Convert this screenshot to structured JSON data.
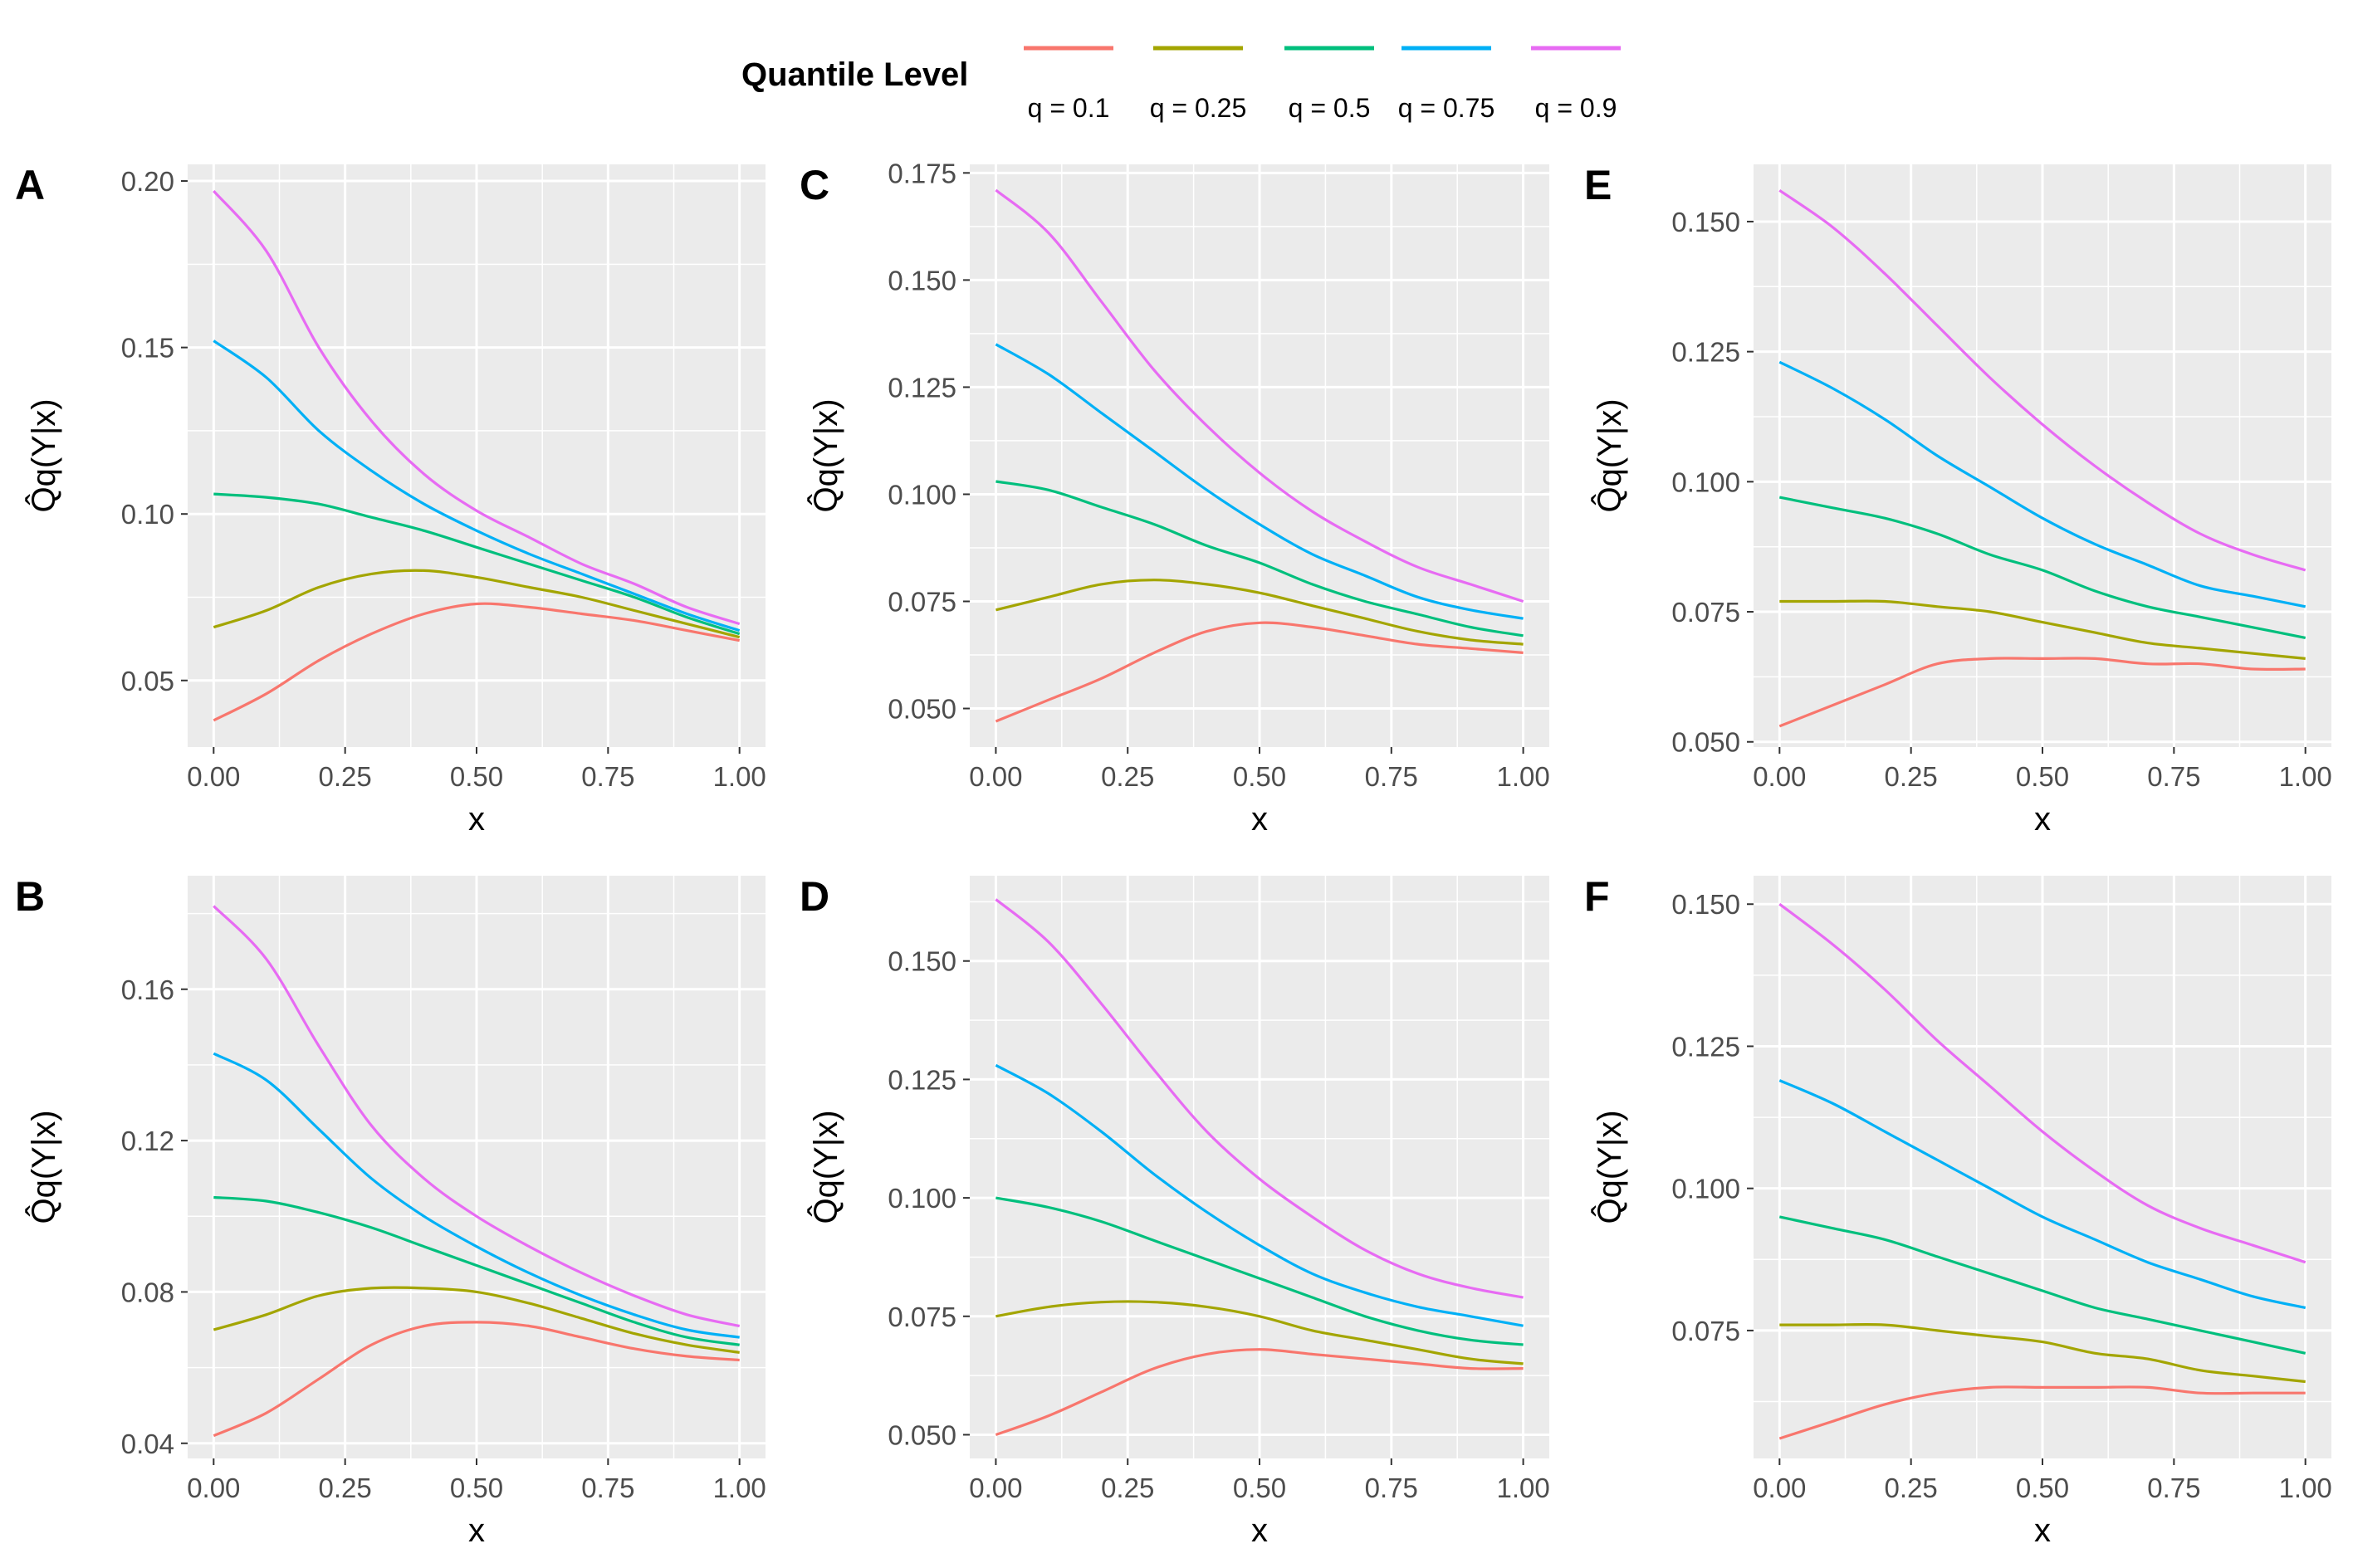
{
  "legend": {
    "title": "Quantile Level",
    "items": [
      {
        "label": "q = 0.1",
        "color": "#F8766D"
      },
      {
        "label": "q = 0.25",
        "color": "#A3A500"
      },
      {
        "label": "q = 0.5",
        "color": "#00BF7D"
      },
      {
        "label": "q = 0.75",
        "color": "#00B0F6"
      },
      {
        "label": "q = 0.9",
        "color": "#E76BF3"
      }
    ]
  },
  "chart_data": [
    {
      "type": "line",
      "panel": "A",
      "xlabel": "x",
      "ylabel": "Q̂q(Y|x)",
      "xlim": [
        0,
        1
      ],
      "ylim": [
        0.03,
        0.205
      ],
      "xticks": [
        "0.00",
        "0.25",
        "0.50",
        "0.75",
        "1.00"
      ],
      "yticks": [
        "0.05",
        "0.10",
        "0.15",
        "0.20"
      ],
      "x": [
        0,
        0.1,
        0.2,
        0.3,
        0.4,
        0.5,
        0.6,
        0.7,
        0.8,
        0.9,
        1.0
      ],
      "series": [
        {
          "name": "q = 0.1",
          "values": [
            0.038,
            0.046,
            0.056,
            0.064,
            0.07,
            0.073,
            0.072,
            0.07,
            0.068,
            0.065,
            0.062
          ]
        },
        {
          "name": "q = 0.25",
          "values": [
            0.066,
            0.071,
            0.078,
            0.082,
            0.083,
            0.081,
            0.078,
            0.075,
            0.071,
            0.067,
            0.063
          ]
        },
        {
          "name": "q = 0.5",
          "values": [
            0.106,
            0.105,
            0.103,
            0.099,
            0.095,
            0.09,
            0.085,
            0.08,
            0.075,
            0.069,
            0.064
          ]
        },
        {
          "name": "q = 0.75",
          "values": [
            0.152,
            0.141,
            0.125,
            0.113,
            0.103,
            0.095,
            0.088,
            0.082,
            0.076,
            0.07,
            0.065
          ]
        },
        {
          "name": "q = 0.9",
          "values": [
            0.197,
            0.179,
            0.15,
            0.128,
            0.112,
            0.101,
            0.093,
            0.085,
            0.079,
            0.072,
            0.067
          ]
        }
      ]
    },
    {
      "type": "line",
      "panel": "B",
      "xlabel": "x",
      "ylabel": "Q̂q(Y|x)",
      "xlim": [
        0,
        1
      ],
      "ylim": [
        0.036,
        0.19
      ],
      "xticks": [
        "0.00",
        "0.25",
        "0.50",
        "0.75",
        "1.00"
      ],
      "yticks": [
        "0.04",
        "0.08",
        "0.12",
        "0.16"
      ],
      "x": [
        0,
        0.1,
        0.2,
        0.3,
        0.4,
        0.5,
        0.6,
        0.7,
        0.8,
        0.9,
        1.0
      ],
      "series": [
        {
          "name": "q = 0.1",
          "values": [
            0.042,
            0.048,
            0.057,
            0.066,
            0.071,
            0.072,
            0.071,
            0.068,
            0.065,
            0.063,
            0.062
          ]
        },
        {
          "name": "q = 0.25",
          "values": [
            0.07,
            0.074,
            0.079,
            0.081,
            0.081,
            0.08,
            0.077,
            0.073,
            0.069,
            0.066,
            0.064
          ]
        },
        {
          "name": "q = 0.5",
          "values": [
            0.105,
            0.104,
            0.101,
            0.097,
            0.092,
            0.087,
            0.082,
            0.077,
            0.072,
            0.068,
            0.066
          ]
        },
        {
          "name": "q = 0.75",
          "values": [
            0.143,
            0.136,
            0.123,
            0.11,
            0.1,
            0.092,
            0.085,
            0.079,
            0.074,
            0.07,
            0.068
          ]
        },
        {
          "name": "q = 0.9",
          "values": [
            0.182,
            0.168,
            0.145,
            0.124,
            0.11,
            0.1,
            0.092,
            0.085,
            0.079,
            0.074,
            0.071
          ]
        }
      ]
    },
    {
      "type": "line",
      "panel": "C",
      "xlabel": "x",
      "ylabel": "Q̂q(Y|x)",
      "xlim": [
        0,
        1
      ],
      "ylim": [
        0.041,
        0.177
      ],
      "xticks": [
        "0.00",
        "0.25",
        "0.50",
        "0.75",
        "1.00"
      ],
      "yticks": [
        "0.050",
        "0.075",
        "0.100",
        "0.125",
        "0.150",
        "0.175"
      ],
      "x": [
        0,
        0.1,
        0.2,
        0.3,
        0.4,
        0.5,
        0.6,
        0.7,
        0.8,
        0.9,
        1.0
      ],
      "series": [
        {
          "name": "q = 0.1",
          "values": [
            0.047,
            0.052,
            0.057,
            0.063,
            0.068,
            0.07,
            0.069,
            0.067,
            0.065,
            0.064,
            0.063
          ]
        },
        {
          "name": "q = 0.25",
          "values": [
            0.073,
            0.076,
            0.079,
            0.08,
            0.079,
            0.077,
            0.074,
            0.071,
            0.068,
            0.066,
            0.065
          ]
        },
        {
          "name": "q = 0.5",
          "values": [
            0.103,
            0.101,
            0.097,
            0.093,
            0.088,
            0.084,
            0.079,
            0.075,
            0.072,
            0.069,
            0.067
          ]
        },
        {
          "name": "q = 0.75",
          "values": [
            0.135,
            0.128,
            0.119,
            0.11,
            0.101,
            0.093,
            0.086,
            0.081,
            0.076,
            0.073,
            0.071
          ]
        },
        {
          "name": "q = 0.9",
          "values": [
            0.171,
            0.161,
            0.145,
            0.129,
            0.116,
            0.105,
            0.096,
            0.089,
            0.083,
            0.079,
            0.075
          ]
        }
      ]
    },
    {
      "type": "line",
      "panel": "D",
      "xlabel": "x",
      "ylabel": "Q̂q(Y|x)",
      "xlim": [
        0,
        1
      ],
      "ylim": [
        0.045,
        0.168
      ],
      "xticks": [
        "0.00",
        "0.25",
        "0.50",
        "0.75",
        "1.00"
      ],
      "yticks": [
        "0.050",
        "0.075",
        "0.100",
        "0.125",
        "0.150"
      ],
      "x": [
        0,
        0.1,
        0.2,
        0.3,
        0.4,
        0.5,
        0.6,
        0.7,
        0.8,
        0.9,
        1.0
      ],
      "series": [
        {
          "name": "q = 0.1",
          "values": [
            0.05,
            0.054,
            0.059,
            0.064,
            0.067,
            0.068,
            0.067,
            0.066,
            0.065,
            0.064,
            0.064
          ]
        },
        {
          "name": "q = 0.25",
          "values": [
            0.075,
            0.077,
            0.078,
            0.078,
            0.077,
            0.075,
            0.072,
            0.07,
            0.068,
            0.066,
            0.065
          ]
        },
        {
          "name": "q = 0.5",
          "values": [
            0.1,
            0.098,
            0.095,
            0.091,
            0.087,
            0.083,
            0.079,
            0.075,
            0.072,
            0.07,
            0.069
          ]
        },
        {
          "name": "q = 0.75",
          "values": [
            0.128,
            0.122,
            0.114,
            0.105,
            0.097,
            0.09,
            0.084,
            0.08,
            0.077,
            0.075,
            0.073
          ]
        },
        {
          "name": "q = 0.9",
          "values": [
            0.163,
            0.154,
            0.141,
            0.127,
            0.114,
            0.104,
            0.096,
            0.089,
            0.084,
            0.081,
            0.079
          ]
        }
      ]
    },
    {
      "type": "line",
      "panel": "E",
      "xlabel": "x",
      "ylabel": "Q̂q(Y|x)",
      "xlim": [
        0,
        1
      ],
      "ylim": [
        0.049,
        0.161
      ],
      "xticks": [
        "0.00",
        "0.25",
        "0.50",
        "0.75",
        "1.00"
      ],
      "yticks": [
        "0.050",
        "0.075",
        "0.100",
        "0.125",
        "0.150"
      ],
      "x": [
        0,
        0.1,
        0.2,
        0.3,
        0.4,
        0.5,
        0.6,
        0.7,
        0.8,
        0.9,
        1.0
      ],
      "series": [
        {
          "name": "q = 0.1",
          "values": [
            0.053,
            0.057,
            0.061,
            0.065,
            0.066,
            0.066,
            0.066,
            0.065,
            0.065,
            0.064,
            0.064
          ]
        },
        {
          "name": "q = 0.25",
          "values": [
            0.077,
            0.077,
            0.077,
            0.076,
            0.075,
            0.073,
            0.071,
            0.069,
            0.068,
            0.067,
            0.066
          ]
        },
        {
          "name": "q = 0.5",
          "values": [
            0.097,
            0.095,
            0.093,
            0.09,
            0.086,
            0.083,
            0.079,
            0.076,
            0.074,
            0.072,
            0.07
          ]
        },
        {
          "name": "q = 0.75",
          "values": [
            0.123,
            0.118,
            0.112,
            0.105,
            0.099,
            0.093,
            0.088,
            0.084,
            0.08,
            0.078,
            0.076
          ]
        },
        {
          "name": "q = 0.9",
          "values": [
            0.156,
            0.149,
            0.14,
            0.13,
            0.12,
            0.111,
            0.103,
            0.096,
            0.09,
            0.086,
            0.083
          ]
        }
      ]
    },
    {
      "type": "line",
      "panel": "F",
      "xlabel": "x",
      "ylabel": "Q̂q(Y|x)",
      "xlim": [
        0,
        1
      ],
      "ylim": [
        0.0525,
        0.155
      ],
      "xticks": [
        "0.00",
        "0.25",
        "0.50",
        "0.75",
        "1.00"
      ],
      "yticks": [
        "0.075",
        "0.100",
        "0.125",
        "0.150"
      ],
      "x": [
        0,
        0.1,
        0.2,
        0.3,
        0.4,
        0.5,
        0.6,
        0.7,
        0.8,
        0.9,
        1.0
      ],
      "series": [
        {
          "name": "q = 0.1",
          "values": [
            0.056,
            0.059,
            0.062,
            0.064,
            0.065,
            0.065,
            0.065,
            0.065,
            0.064,
            0.064,
            0.064
          ]
        },
        {
          "name": "q = 0.25",
          "values": [
            0.076,
            0.076,
            0.076,
            0.075,
            0.074,
            0.073,
            0.071,
            0.07,
            0.068,
            0.067,
            0.066
          ]
        },
        {
          "name": "q = 0.5",
          "values": [
            0.095,
            0.093,
            0.091,
            0.088,
            0.085,
            0.082,
            0.079,
            0.077,
            0.075,
            0.073,
            0.071
          ]
        },
        {
          "name": "q = 0.75",
          "values": [
            0.119,
            0.115,
            0.11,
            0.105,
            0.1,
            0.095,
            0.091,
            0.087,
            0.084,
            0.081,
            0.079
          ]
        },
        {
          "name": "q = 0.9",
          "values": [
            0.15,
            0.143,
            0.135,
            0.126,
            0.118,
            0.11,
            0.103,
            0.097,
            0.093,
            0.09,
            0.087
          ]
        }
      ]
    }
  ]
}
